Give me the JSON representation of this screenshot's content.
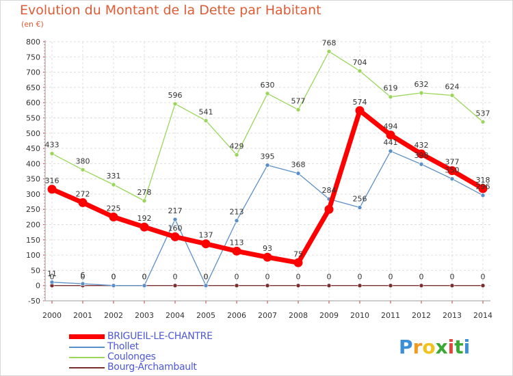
{
  "chart_data": {
    "type": "line",
    "title": "Evolution du Montant de la Dette par Habitant",
    "ylabel": "(en €)",
    "xlabel": "",
    "categories": [
      "2000",
      "2001",
      "2002",
      "2003",
      "2004",
      "2005",
      "2006",
      "2007",
      "2008",
      "2009",
      "2010",
      "2011",
      "2012",
      "2013",
      "2014"
    ],
    "ylim": [
      -50,
      800
    ],
    "yticks": [
      "-50",
      "0",
      "50",
      "100",
      "150",
      "200",
      "250",
      "300",
      "350",
      "400",
      "450",
      "500",
      "550",
      "600",
      "650",
      "700",
      "750",
      "800"
    ],
    "grid": true,
    "legend_position": "bottom-left",
    "series": [
      {
        "name": "BRIGUEIL-LE-CHANTRE",
        "color": "#ff0000",
        "values": [
          316,
          272,
          225,
          192,
          160,
          137,
          113,
          93,
          75,
          250,
          574,
          494,
          432,
          377,
          318
        ],
        "labels": [
          "316",
          "272",
          "225",
          "192",
          "160",
          "137",
          "113",
          "93",
          "75",
          "",
          "574",
          "494",
          "432",
          "377",
          "318"
        ]
      },
      {
        "name": "Thollet",
        "color": "#5b8fc7",
        "values": [
          11,
          6,
          0,
          0,
          217,
          0,
          213,
          395,
          368,
          284,
          256,
          441,
          398,
          350,
          296
        ],
        "labels": [
          "11",
          "6",
          "0",
          "0",
          "217",
          "0",
          "213",
          "395",
          "368",
          "284",
          "256",
          "441",
          "398",
          "350",
          "296"
        ]
      },
      {
        "name": "Coulonges",
        "color": "#9ad65a",
        "values": [
          433,
          380,
          331,
          278,
          596,
          541,
          429,
          630,
          577,
          768,
          704,
          619,
          632,
          624,
          537
        ],
        "labels": [
          "433",
          "380",
          "331",
          "278",
          "596",
          "541",
          "429",
          "630",
          "577",
          "768",
          "704",
          "619",
          "632",
          "624",
          "537"
        ]
      },
      {
        "name": "Bourg-Archambault",
        "color": "#7a2e2e",
        "values": [
          0,
          0,
          0,
          0,
          0,
          0,
          0,
          0,
          0,
          0,
          0,
          0,
          0,
          0,
          0
        ],
        "labels": [
          "0",
          "0",
          "0",
          "0",
          "0",
          "0",
          "0",
          "0",
          "0",
          "0",
          "0",
          "0",
          "0",
          "0",
          "0"
        ]
      }
    ]
  },
  "header": {
    "title": "Evolution du Montant de la Dette par Habitant",
    "unit": "(en €)"
  },
  "legend": {
    "items": [
      {
        "label": "BRIGUEIL-LE-CHANTRE",
        "color": "#ff0000"
      },
      {
        "label": "Thollet",
        "color": "#5b8fc7"
      },
      {
        "label": "Coulonges",
        "color": "#9ad65a"
      },
      {
        "label": "Bourg-Archambault",
        "color": "#7a2e2e"
      }
    ]
  },
  "logo": {
    "p": "P",
    "r": "r",
    "o": "o",
    "x": "x",
    "i1": "i",
    "t": "t",
    "i2": "i",
    "colors": {
      "p": "#3a8fd8",
      "r": "#f29a1d",
      "o": "#f2c21d",
      "x": "#3aaa35",
      "i1": "#e8433a",
      "t": "#3aaa35",
      "i2": "#3a8fd8"
    }
  }
}
